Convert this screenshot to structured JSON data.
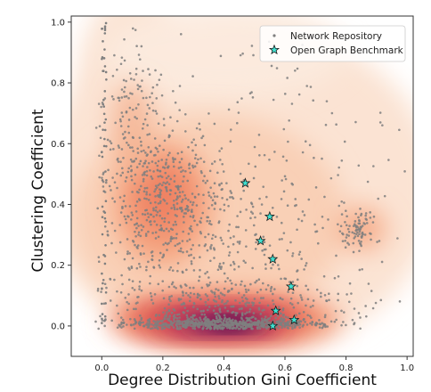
{
  "chart_data": {
    "type": "scatter",
    "xlabel": "Degree Distribution Gini Coefficient",
    "ylabel": "Clustering Coefficient",
    "xlim": [
      -0.1,
      1.02
    ],
    "ylim": [
      -0.1,
      1.02
    ],
    "x_ticks": [
      "0.0",
      "0.2",
      "0.4",
      "0.6",
      "0.8",
      "1.0"
    ],
    "y_ticks": [
      "0.0",
      "0.2",
      "0.4",
      "0.6",
      "0.8",
      "1.0"
    ],
    "grid": false,
    "legend_position": "top-right",
    "density_background": true,
    "series": [
      {
        "name": "Network Repository",
        "marker": "dot",
        "color": "#7f7f7f",
        "description_points_approx": "several thousand points; densest along y~0 for x 0.1-0.6, cluster near (0.15-0.25, 0.3-0.5), cluster near (0.84, 0.32)",
        "clusters": [
          {
            "cx": 0.4,
            "cy": 0.005,
            "sx": 0.16,
            "sy": 0.012,
            "n": 700
          },
          {
            "cx": 0.2,
            "cy": 0.4,
            "sx": 0.09,
            "sy": 0.13,
            "n": 420
          },
          {
            "cx": 0.1,
            "cy": 0.7,
            "sx": 0.05,
            "sy": 0.15,
            "n": 120
          },
          {
            "cx": 0.84,
            "cy": 0.32,
            "sx": 0.025,
            "sy": 0.03,
            "n": 80
          },
          {
            "cx": 0.42,
            "cy": 0.25,
            "sx": 0.22,
            "sy": 0.2,
            "n": 350
          },
          {
            "cx": 0.55,
            "cy": 0.6,
            "sx": 0.25,
            "sy": 0.25,
            "n": 110
          },
          {
            "cx": 0.45,
            "cy": 0.08,
            "sx": 0.25,
            "sy": 0.05,
            "n": 260
          }
        ]
      },
      {
        "name": "Open Graph Benchmark",
        "marker": "star",
        "color": "#40e0d0",
        "points": [
          {
            "x": 0.47,
            "y": 0.47
          },
          {
            "x": 0.55,
            "y": 0.36
          },
          {
            "x": 0.52,
            "y": 0.28
          },
          {
            "x": 0.56,
            "y": 0.22
          },
          {
            "x": 0.62,
            "y": 0.13
          },
          {
            "x": 0.57,
            "y": 0.05
          },
          {
            "x": 0.56,
            "y": 0.0
          },
          {
            "x": 0.63,
            "y": 0.02
          }
        ]
      }
    ]
  }
}
